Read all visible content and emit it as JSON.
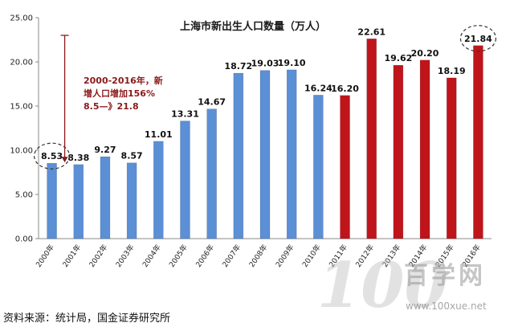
{
  "chart_data": {
    "type": "bar",
    "title": "上海市新出生人口数量（万人）",
    "categories": [
      "2000年",
      "2001年",
      "2002年",
      "2003年",
      "2004年",
      "2005年",
      "2006年",
      "2007年",
      "2008年",
      "2009年",
      "2010年",
      "2011年",
      "2012年",
      "2013年",
      "2014年",
      "2015年",
      "2016年"
    ],
    "values": [
      8.53,
      8.38,
      9.27,
      8.57,
      11.01,
      13.31,
      14.67,
      18.72,
      19.03,
      19.1,
      16.24,
      16.2,
      22.61,
      19.62,
      20.2,
      18.19,
      21.84
    ],
    "data_labels": [
      "8.53",
      "8.38",
      "9.27",
      "8.57",
      "11.01",
      "13.31",
      "14.67",
      "18.72",
      "19.03",
      "19.10",
      "16.24",
      "16.20",
      "22.61",
      "19.62",
      "20.20",
      "18.19",
      "21.84"
    ],
    "ylim": [
      0,
      25
    ],
    "yticks": [
      "0.00",
      "5.00",
      "10.00",
      "15.00",
      "20.00",
      "25.00"
    ],
    "grid": false,
    "bar_colors": {
      "early": "#5b8fd6",
      "late": "#c0141b"
    },
    "highlight_from_index": 11,
    "circled_indices": [
      0,
      16
    ],
    "annotation": {
      "lines": [
        "2000-2016年，新",
        "增人口增加156%",
        "8.5—》21.8"
      ],
      "color": "#8b1a1a",
      "arrow_from_value": 23.0,
      "arrow_to_value": 8.53
    }
  },
  "source": "资料来源：统计局，国金证券研究所",
  "watermark": {
    "mark": "100",
    "name": "百学网",
    "url": "www.100xue.net"
  }
}
